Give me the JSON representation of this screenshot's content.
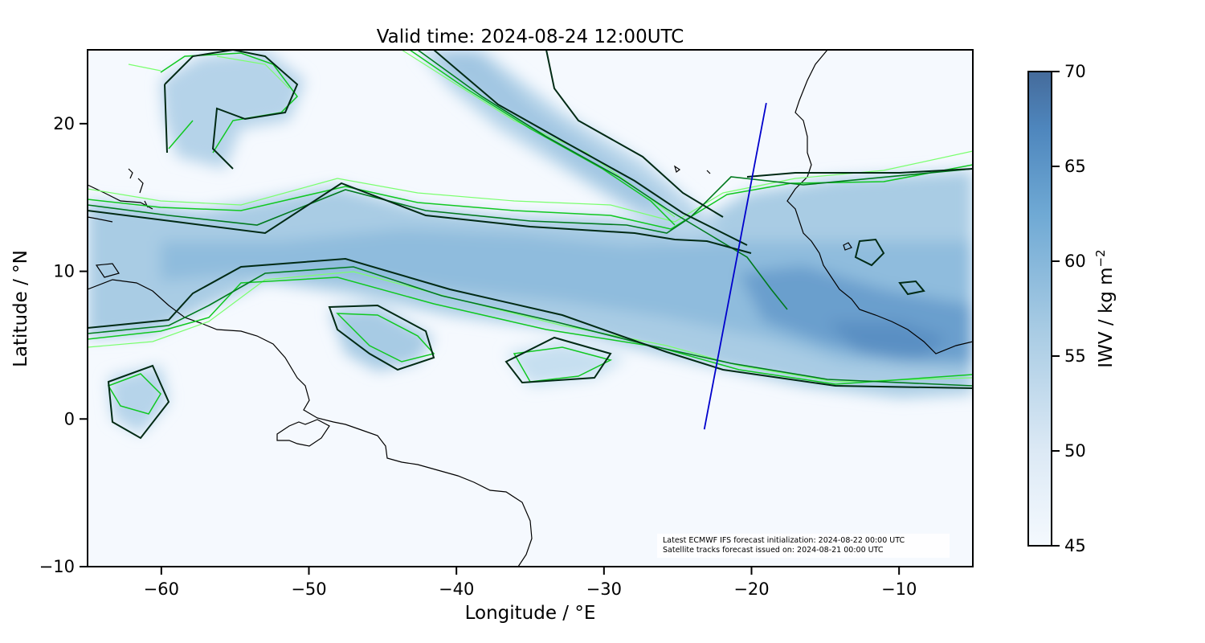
{
  "title": "Valid time: 2024-08-24 12:00UTC",
  "x_axis": {
    "label": "Longitude / °E",
    "ticks": [
      {
        "value": -60,
        "label": "−60"
      },
      {
        "value": -50,
        "label": "−50"
      },
      {
        "value": -40,
        "label": "−40"
      },
      {
        "value": -30,
        "label": "−30"
      },
      {
        "value": -20,
        "label": "−20"
      },
      {
        "value": -10,
        "label": "−10"
      }
    ],
    "range": [
      -65,
      -5
    ]
  },
  "y_axis": {
    "label": "Latitude / °N",
    "ticks": [
      {
        "value": 20,
        "label": "20"
      },
      {
        "value": 10,
        "label": "10"
      },
      {
        "value": 0,
        "label": "0"
      },
      {
        "value": -10,
        "label": "−10"
      }
    ],
    "range": [
      -10,
      25
    ]
  },
  "colorbar": {
    "label_main": "IWV / kg m",
    "label_exp": "−2",
    "range": [
      45,
      70
    ],
    "ticks": [
      {
        "value": 70,
        "label": "70"
      },
      {
        "value": 65,
        "label": "65"
      },
      {
        "value": 60,
        "label": "60"
      },
      {
        "value": 55,
        "label": "55"
      },
      {
        "value": 50,
        "label": "50"
      },
      {
        "value": 45,
        "label": "45"
      }
    ],
    "color_low": "#f4f9fe",
    "color_high": "#456b9b"
  },
  "annotation": {
    "line1": "Latest ECMWF IFS forecast initialization: 2024-08-22 00:00 UTC",
    "line2": "Satellite tracks forecast issued on: 2024-08-21 00:00 UTC"
  },
  "satellite_track": {
    "color": "#0000cc",
    "points": [
      [
        -23.2,
        -0.7
      ],
      [
        -19.0,
        21.4
      ]
    ]
  },
  "colors": {
    "contour_dark": "#002a14",
    "contour_mid": "#007a1e",
    "contour_bright": "#10c820",
    "contour_light": "#7aff6e",
    "coastline": "#000000"
  }
}
